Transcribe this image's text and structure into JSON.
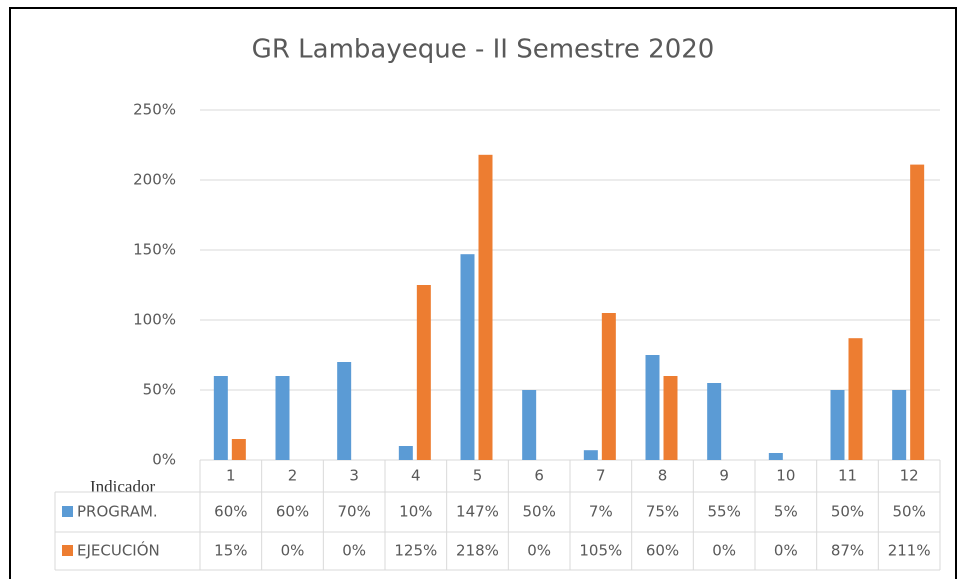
{
  "chart_data": {
    "type": "bar",
    "title": "GR Lambayeque - II Semestre 2020",
    "xlabel": "Indicador",
    "categories": [
      "1",
      "2",
      "3",
      "4",
      "5",
      "6",
      "7",
      "8",
      "9",
      "10",
      "11",
      "12"
    ],
    "series": [
      {
        "name": "PROGRAM.",
        "color": "#5b9bd5",
        "values": [
          60,
          60,
          70,
          10,
          147,
          50,
          7,
          75,
          55,
          5,
          50,
          50
        ],
        "value_labels": [
          "60%",
          "60%",
          "70%",
          "10%",
          "147%",
          "50%",
          "7%",
          "75%",
          "55%",
          "5%",
          "50%",
          "50%"
        ]
      },
      {
        "name": "EJECUCIÓN",
        "color": "#ed7d31",
        "values": [
          15,
          0,
          0,
          125,
          218,
          0,
          105,
          60,
          0,
          0,
          87,
          211
        ],
        "value_labels": [
          "15%",
          "0%",
          "0%",
          "125%",
          "218%",
          "0%",
          "105%",
          "60%",
          "0%",
          "0%",
          "87%",
          "211%"
        ]
      }
    ],
    "ylim": [
      0,
      250
    ],
    "yticks": [
      {
        "value": 0,
        "label": "0%"
      },
      {
        "value": 50,
        "label": "50%"
      },
      {
        "value": 100,
        "label": "100%"
      },
      {
        "value": 150,
        "label": "150%"
      },
      {
        "value": 200,
        "label": "200%"
      },
      {
        "value": 250,
        "label": "250%"
      }
    ],
    "grid": true
  }
}
